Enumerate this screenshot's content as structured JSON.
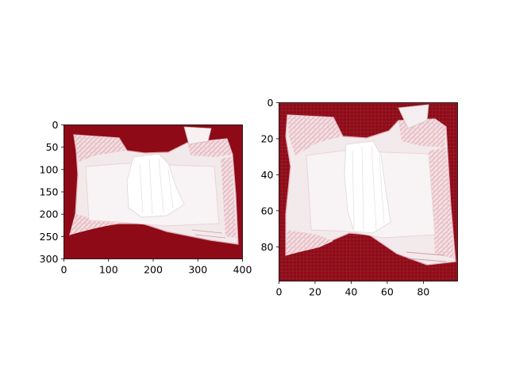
{
  "chart_data": [
    {
      "type": "image",
      "title": "",
      "xlabel": "",
      "ylabel": "",
      "xlim": [
        0,
        400
      ],
      "ylim": [
        300,
        0
      ],
      "y_inverted": true,
      "xticks": [
        0,
        100,
        200,
        300,
        400
      ],
      "yticks": [
        0,
        50,
        100,
        150,
        200,
        250,
        300
      ],
      "grid": false,
      "image_content": "white diaper on dark red background",
      "colors": {
        "background": "#8e0a17",
        "diaper": "#efe6e8",
        "trim": "#e7b3bd"
      }
    },
    {
      "type": "image",
      "title": "",
      "xlabel": "",
      "ylabel": "",
      "xlim": [
        0,
        99
      ],
      "ylim": [
        99,
        0
      ],
      "y_inverted": true,
      "xticks": [
        0,
        20,
        40,
        60,
        80
      ],
      "yticks": [
        0,
        20,
        40,
        60,
        80
      ],
      "grid": false,
      "image_content": "pixelated diaper on dark red background",
      "colors": {
        "background": "#8e0a17",
        "diaper": "#efe6e8",
        "trim": "#e7b3bd"
      }
    }
  ]
}
